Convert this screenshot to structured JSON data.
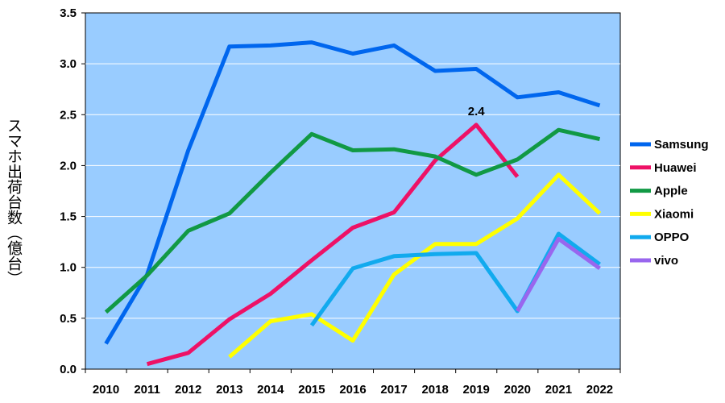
{
  "chart_data": {
    "type": "line",
    "title": "",
    "xlabel": "",
    "ylabel": "スマホ出荷台数（億台）",
    "x": [
      "2010",
      "2011",
      "2012",
      "2013",
      "2014",
      "2015",
      "2016",
      "2017",
      "2018",
      "2019",
      "2020",
      "2021",
      "2022"
    ],
    "ylim": [
      0,
      3.5
    ],
    "yticks": [
      "0.0",
      "0.5",
      "1.0",
      "1.5",
      "2.0",
      "2.5",
      "3.0",
      "3.5"
    ],
    "grid": true,
    "legend": "right",
    "plot_background": "#99ccff",
    "series": [
      {
        "name": "Samsung",
        "color": "#0066ee",
        "values": [
          0.25,
          0.93,
          2.15,
          3.17,
          3.18,
          3.21,
          3.1,
          3.18,
          2.93,
          2.95,
          2.67,
          2.72,
          2.59
        ]
      },
      {
        "name": "Huawei",
        "color": "#ee1166",
        "values": [
          null,
          0.05,
          0.16,
          0.49,
          0.74,
          1.07,
          1.39,
          1.54,
          2.05,
          2.4,
          1.89,
          null,
          null
        ]
      },
      {
        "name": "Apple",
        "color": "#119944",
        "values": [
          0.56,
          0.92,
          1.36,
          1.53,
          1.93,
          2.31,
          2.15,
          2.16,
          2.09,
          1.91,
          2.06,
          2.35,
          2.26
        ]
      },
      {
        "name": "Xiaomi",
        "color": "#ffff00",
        "values": [
          null,
          null,
          null,
          0.12,
          0.47,
          0.54,
          0.28,
          0.93,
          1.23,
          1.23,
          1.48,
          1.91,
          1.53
        ]
      },
      {
        "name": "OPPO",
        "color": "#11aaee",
        "values": [
          null,
          null,
          null,
          null,
          null,
          0.43,
          0.99,
          1.11,
          1.13,
          1.14,
          0.57,
          1.33,
          1.03
        ]
      },
      {
        "name": "vivo",
        "color": "#9966ee",
        "values": [
          null,
          null,
          null,
          null,
          null,
          null,
          null,
          null,
          null,
          null,
          0.57,
          1.28,
          0.99
        ]
      }
    ],
    "annotations": [
      {
        "series": "Huawei",
        "x": "2019",
        "text": "2.4"
      }
    ]
  }
}
